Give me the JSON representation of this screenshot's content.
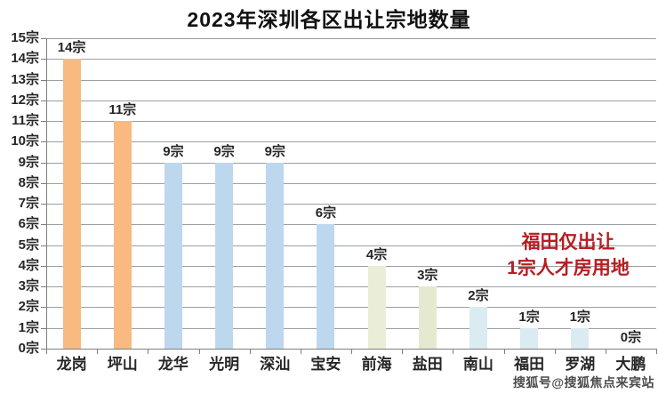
{
  "watermark": "搜狐号@搜狐焦点来宾站",
  "chart_data": {
    "type": "bar",
    "title": "2023年深圳各区出让宗地数量",
    "categories": [
      "龙岗",
      "坪山",
      "龙华",
      "光明",
      "深汕",
      "宝安",
      "前海",
      "盐田",
      "南山",
      "福田",
      "罗湖",
      "大鹏"
    ],
    "values": [
      14,
      11,
      9,
      9,
      9,
      6,
      4,
      3,
      2,
      1,
      1,
      0
    ],
    "value_labels": [
      "14宗",
      "11宗",
      "9宗",
      "9宗",
      "9宗",
      "6宗",
      "4宗",
      "3宗",
      "2宗",
      "1宗",
      "1宗",
      "0宗"
    ],
    "bar_colors": [
      "#F8BA80",
      "#F8BA80",
      "#BDD7EE",
      "#BDD7EE",
      "#BDD7EE",
      "#BDD7EE",
      "#EBEED7",
      "#E5E9CF",
      "#DAEBF2",
      "#DAEBF2",
      "#DAEBF2",
      "#DAEBF2"
    ],
    "y_ticks": [
      "0宗",
      "1宗",
      "2宗",
      "3宗",
      "4宗",
      "5宗",
      "6宗",
      "7宗",
      "8宗",
      "9宗",
      "10宗",
      "11宗",
      "12宗",
      "13宗",
      "14宗",
      "15宗"
    ],
    "ylim": [
      0,
      15
    ],
    "grid": true,
    "legend": "none",
    "unit_suffix": "宗",
    "annotation": {
      "line1": "福田仅出让",
      "line2": "1宗人才房用地",
      "color": "#B61D22"
    }
  }
}
